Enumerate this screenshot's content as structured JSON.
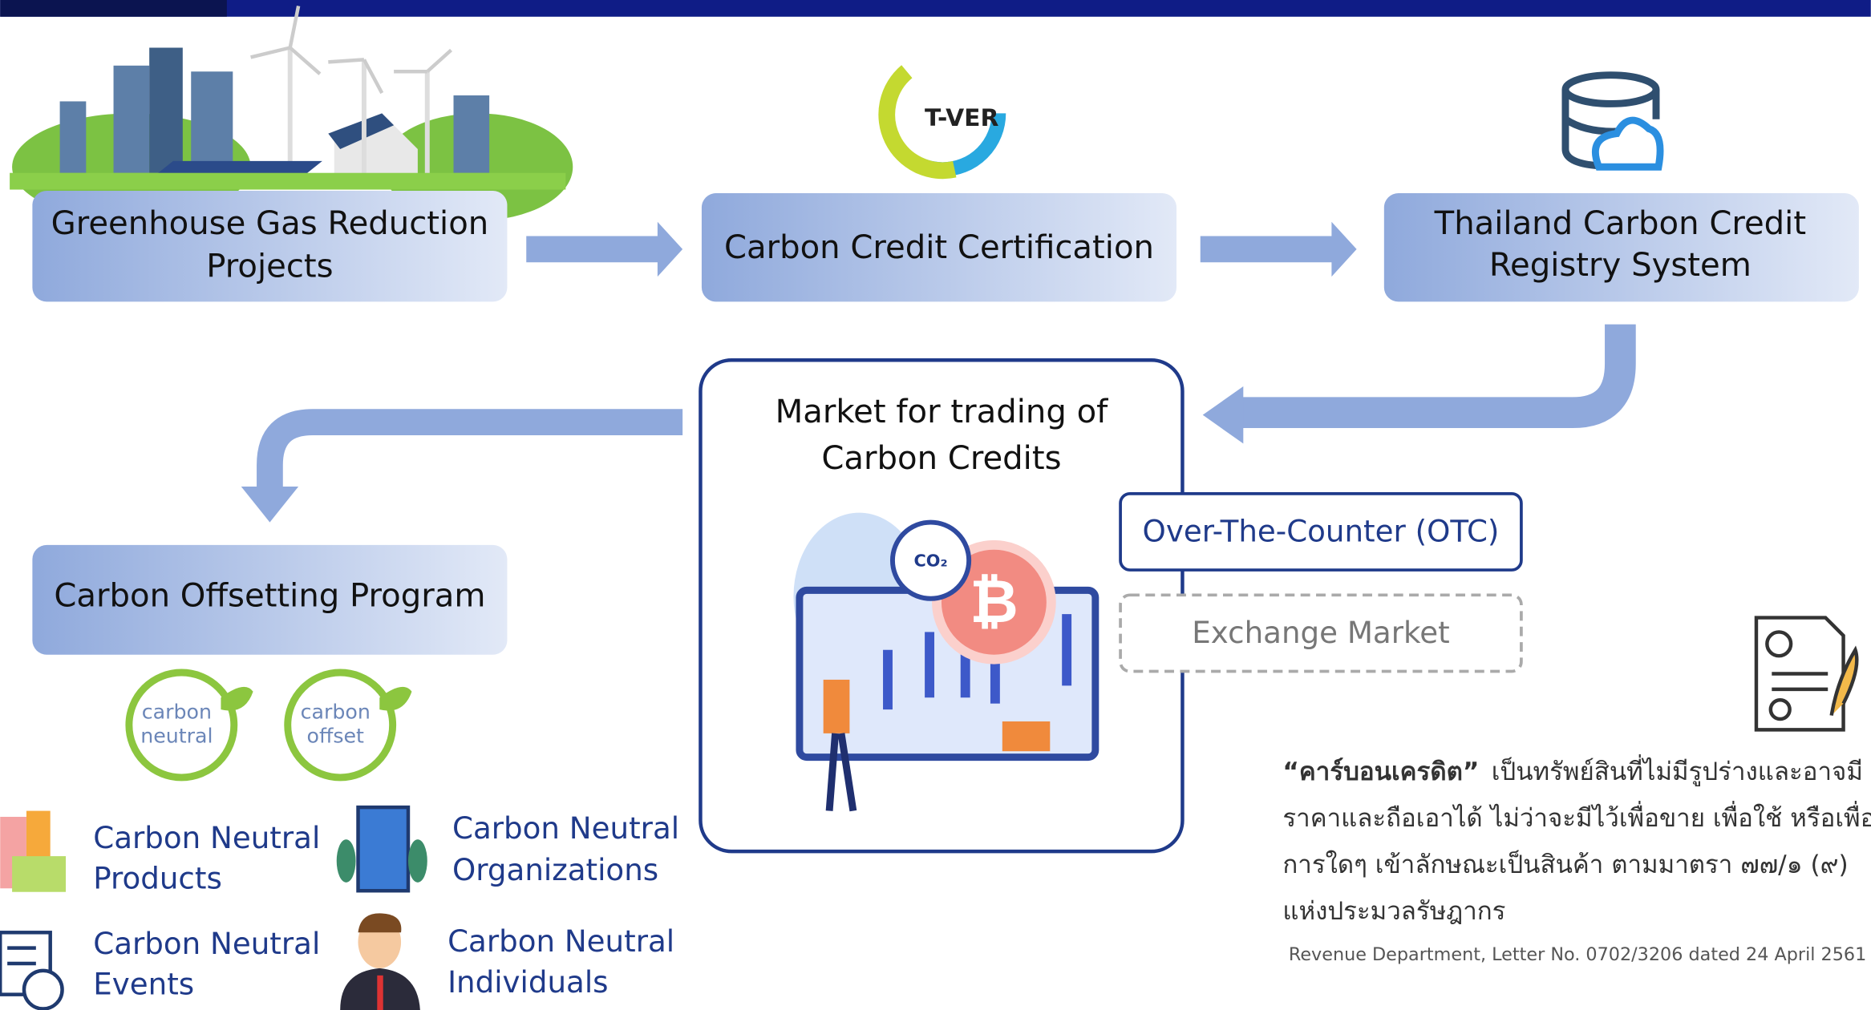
{
  "nodes": [
    {
      "label": [
        "Greenhouse Gas Reduction",
        "Projects"
      ]
    },
    {
      "label": [
        "Carbon Credit Certification"
      ]
    },
    {
      "label": [
        "Thailand Carbon Credit",
        "Registry System"
      ]
    },
    {
      "label": [
        "Market for trading of",
        "Carbon Credits"
      ]
    },
    {
      "label": [
        "Carbon Offsetting Program"
      ]
    }
  ],
  "logos": {
    "tver": "T-VER",
    "co2": "CO₂",
    "carbon_neutral": [
      "carbon",
      "neutral"
    ],
    "carbon_offset": [
      "carbon",
      "offset"
    ]
  },
  "market_types": [
    "Over-The-Counter (OTC)",
    "Exchange Market"
  ],
  "participants": [
    [
      "Carbon Neutral",
      "Products"
    ],
    [
      "Carbon Neutral",
      "Organizations"
    ],
    [
      "Carbon Neutral",
      "Events"
    ],
    [
      "Carbon Neutral",
      "Individuals"
    ]
  ],
  "definition": {
    "term": "“คาร์บอนเครดิต”",
    "lines": [
      "เป็นทรัพย์สินที่ไม่มีรูปร่างและอาจมี",
      "ราคาและถือเอาได้ ไม่ว่าจะมีไว้เพื่อขาย เพื่อใช้ หรือเพื่อ",
      "การใดๆ เข้าลักษณะเป็นสินค้า ตามมาตรา ๗๗/๑ (๙)",
      "แห่งประมวลรัษฎากร"
    ],
    "source": "Revenue Department, Letter No. 0702/3206 dated 24 April 2561"
  }
}
